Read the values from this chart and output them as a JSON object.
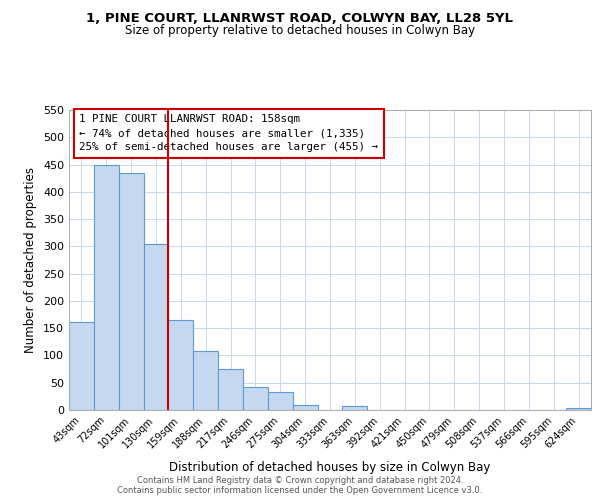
{
  "title1": "1, PINE COURT, LLANRWST ROAD, COLWYN BAY, LL28 5YL",
  "title2": "Size of property relative to detached houses in Colwyn Bay",
  "xlabel": "Distribution of detached houses by size in Colwyn Bay",
  "ylabel": "Number of detached properties",
  "bin_labels": [
    "43sqm",
    "72sqm",
    "101sqm",
    "130sqm",
    "159sqm",
    "188sqm",
    "217sqm",
    "246sqm",
    "275sqm",
    "304sqm",
    "333sqm",
    "363sqm",
    "392sqm",
    "421sqm",
    "450sqm",
    "479sqm",
    "508sqm",
    "537sqm",
    "566sqm",
    "595sqm",
    "624sqm"
  ],
  "bin_values": [
    162,
    450,
    435,
    305,
    165,
    108,
    75,
    43,
    33,
    10,
    0,
    7,
    0,
    0,
    0,
    0,
    0,
    0,
    0,
    0,
    3
  ],
  "bar_color": "#c5d8f0",
  "bar_edge_color": "#5b9bd5",
  "ref_line_x": 3.5,
  "ref_line_color": "#cc0000",
  "annotation_line1": "1 PINE COURT LLANRWST ROAD: 158sqm",
  "annotation_line2": "← 74% of detached houses are smaller (1,335)",
  "annotation_line3": "25% of semi-detached houses are larger (455) →",
  "footer1": "Contains HM Land Registry data © Crown copyright and database right 2024.",
  "footer2": "Contains public sector information licensed under the Open Government Licence v3.0.",
  "ylim": [
    0,
    550
  ],
  "yticks": [
    0,
    50,
    100,
    150,
    200,
    250,
    300,
    350,
    400,
    450,
    500,
    550
  ],
  "bg_color": "#ffffff",
  "grid_color": "#c8d8ec"
}
